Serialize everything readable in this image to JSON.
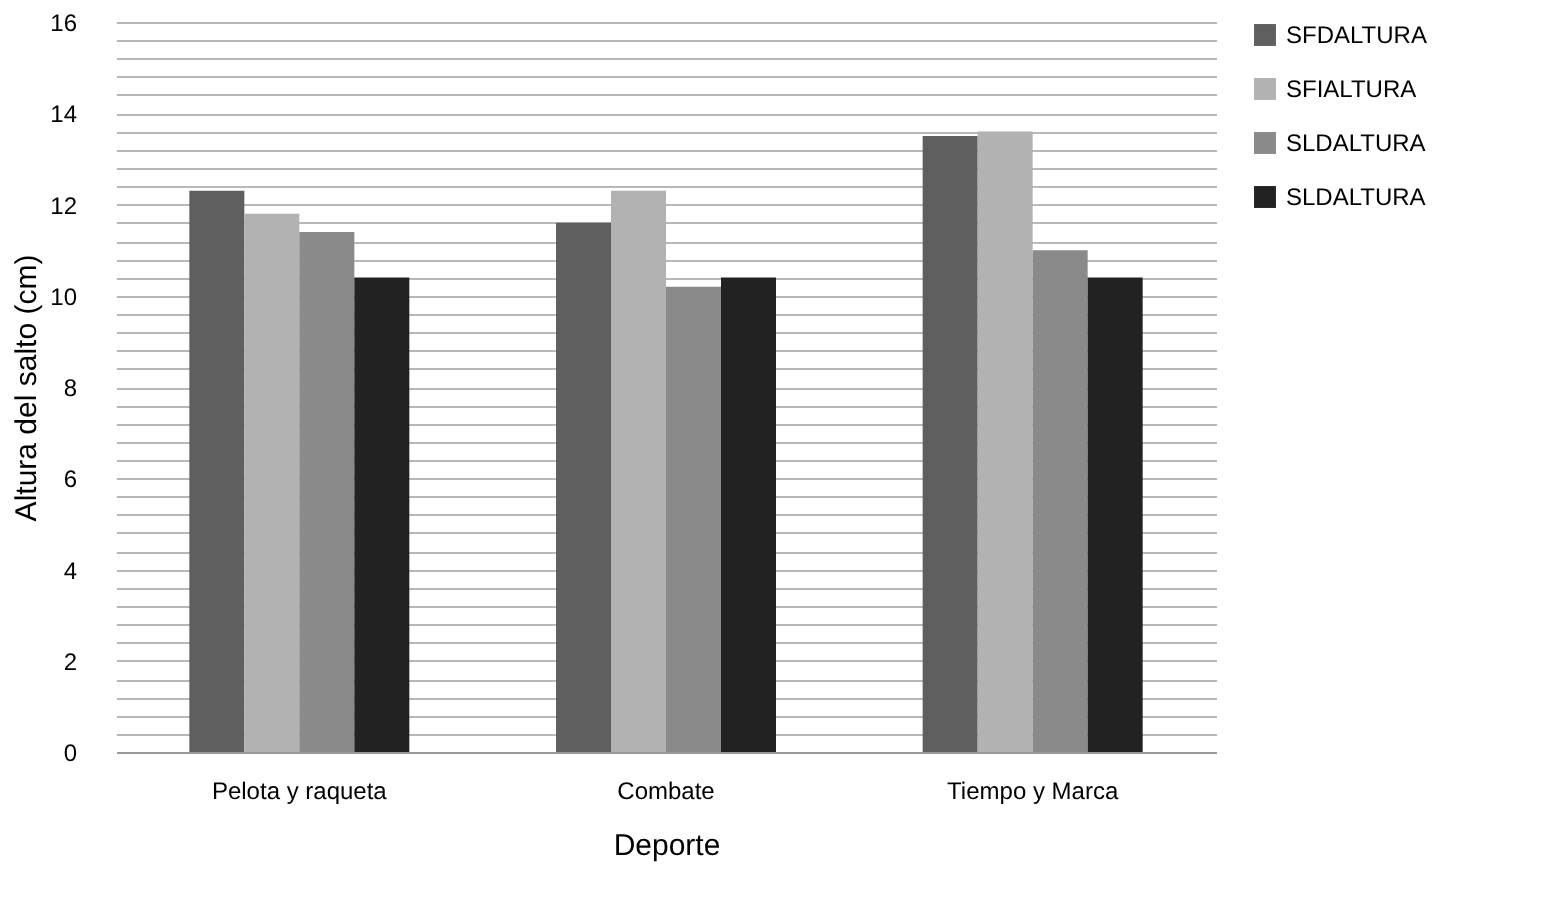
{
  "chart_data": {
    "type": "bar",
    "xlabel": "Deporte",
    "ylabel": "Altura del salto (cm)",
    "categories": [
      "Pelota y raqueta",
      "Combate",
      "Tiempo y Marca"
    ],
    "series": [
      {
        "name": "SFDALTURA",
        "color": "#5f5f5f",
        "values": [
          12.3,
          11.6,
          13.5
        ]
      },
      {
        "name": "SFIALTURA",
        "color": "#b2b2b2",
        "values": [
          11.8,
          12.3,
          13.6
        ]
      },
      {
        "name": "SLDALTURA",
        "color": "#8a8a8a",
        "values": [
          11.4,
          10.2,
          11.0
        ]
      },
      {
        "name": "SLDALTURA",
        "color": "#222222",
        "values": [
          10.4,
          10.4,
          10.4
        ]
      }
    ],
    "ylim": [
      0,
      16
    ],
    "yticks": [
      0,
      {
        "value": 0.4,
        "label": null
      },
      {
        "value": 0.8,
        "label": null
      },
      {
        "value": 1.2,
        "label": null
      },
      {
        "value": 1.6,
        "label": null
      },
      2,
      {
        "value": 2.4,
        "label": null
      },
      {
        "value": 2.8,
        "label": null
      },
      {
        "value": 3.2,
        "label": null
      },
      {
        "value": 3.6,
        "label": null
      },
      4,
      {
        "value": 4.4,
        "label": null
      },
      {
        "value": 4.8,
        "label": null
      },
      {
        "value": 5.2,
        "label": null
      },
      {
        "value": 5.6,
        "label": null
      },
      6,
      {
        "value": 6.4,
        "label": null
      },
      {
        "value": 6.8,
        "label": null
      },
      {
        "value": 7.2,
        "label": null
      },
      {
        "value": 7.6,
        "label": null
      },
      8,
      {
        "value": 8.4,
        "label": null
      },
      {
        "value": 8.8,
        "label": null
      },
      {
        "value": 9.2,
        "label": null
      },
      {
        "value": 9.6,
        "label": null
      },
      10,
      {
        "value": 10.4,
        "label": null
      },
      {
        "value": 10.8,
        "label": null
      },
      {
        "value": 11.2,
        "label": null
      },
      {
        "value": 11.6,
        "label": null
      },
      12,
      {
        "value": 12.4,
        "label": null
      },
      {
        "value": 12.8,
        "label": null
      },
      {
        "value": 13.2,
        "label": null
      },
      {
        "value": 13.6,
        "label": null
      },
      14,
      {
        "value": 14.4,
        "label": null
      },
      {
        "value": 14.8,
        "label": null
      },
      {
        "value": 15.2,
        "label": null
      },
      {
        "value": 15.6,
        "label": null
      },
      16
    ],
    "grid": "y",
    "legend": "right"
  }
}
